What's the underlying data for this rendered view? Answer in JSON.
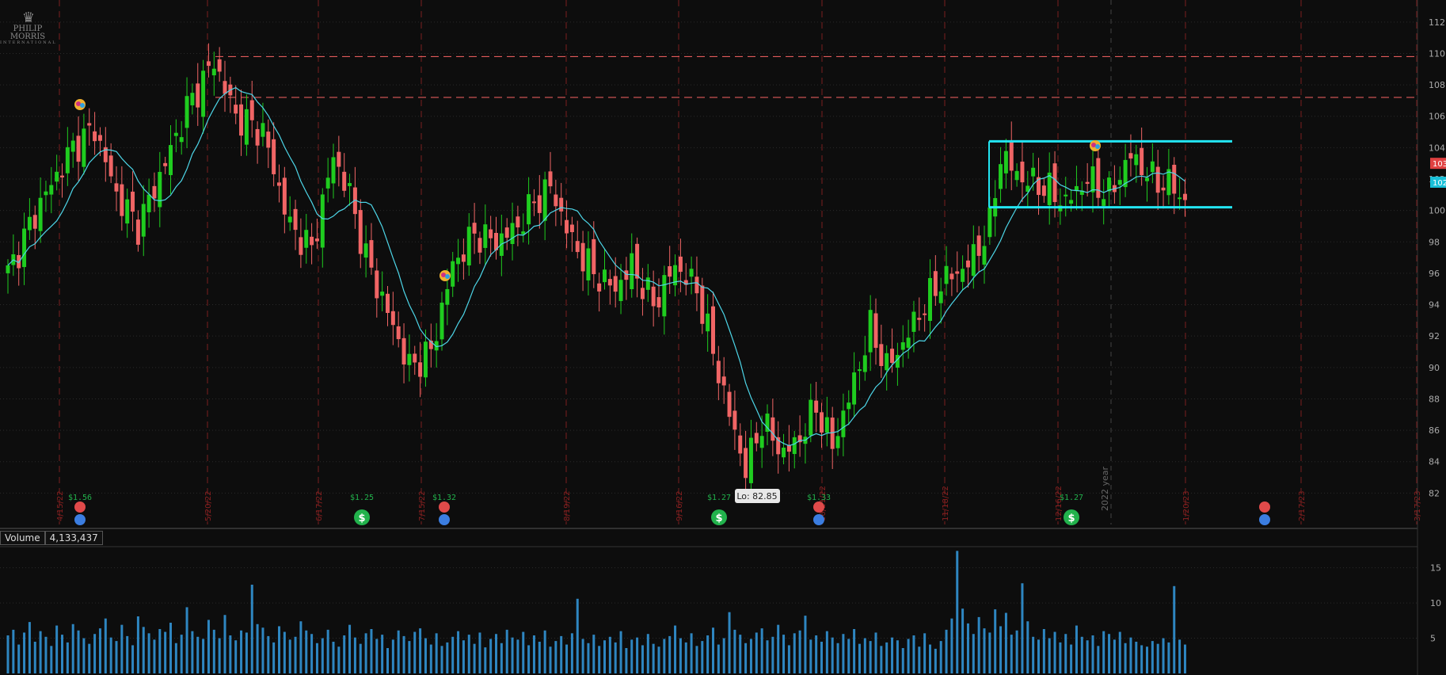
{
  "logo": {
    "name": "PHILIP MORRIS",
    "sub": "INTERNATIONAL"
  },
  "volume_panel": {
    "label": "Volume",
    "value": "4,133,437"
  },
  "price_labels": {
    "last": "103",
    "ma": "102"
  },
  "low_label": "Lo: 82.85",
  "year_label": "2022 year",
  "colors": {
    "up": "#1fcc1f",
    "down": "#f06565",
    "ma": "#4dd6e8",
    "channel": "#23e5f2",
    "resistance": "#e05a5a",
    "grid": "#2a2a2a",
    "volume": "#2e86c1",
    "dividend": "#22b24c",
    "earnings": "#e04a4a",
    "info": "#3b7de0"
  },
  "chart_data": {
    "type": "candlestick",
    "ylim": [
      80,
      113
    ],
    "y_ticks": [
      82,
      84,
      86,
      88,
      90,
      92,
      94,
      96,
      98,
      100,
      102,
      104,
      106,
      108,
      110,
      112
    ],
    "x_date_labels": [
      "4/15/22",
      "5/20/22",
      "6/17/22",
      "7/15/22",
      "8/19/22",
      "9/16/22",
      "10/21/22",
      "11/18/22",
      "12/16/22",
      "1/20/23",
      "2/17/23",
      "3/17/23"
    ],
    "dividends": [
      "$1.56",
      "$1.25",
      "$1.32",
      "$1.27",
      "$1.33",
      "$1.27"
    ],
    "resistance_levels": [
      109.8,
      107.2
    ],
    "channel": {
      "top": 104.4,
      "bottom": 100.2
    },
    "volume_ticks": [
      5,
      10,
      15
    ],
    "volume_unit": "M",
    "last_price": 103,
    "low": 82.85,
    "anchors": [
      [
        0,
        96.0
      ],
      [
        6,
        100.5
      ],
      [
        12,
        104.0
      ],
      [
        16,
        105.2
      ],
      [
        20,
        101.0
      ],
      [
        24,
        99.0
      ],
      [
        29,
        103.0
      ],
      [
        33,
        106.5
      ],
      [
        38,
        109.5
      ],
      [
        42,
        106.0
      ],
      [
        47,
        105.0
      ],
      [
        52,
        99.0
      ],
      [
        56,
        97.5
      ],
      [
        60,
        103.5
      ],
      [
        63,
        101.0
      ],
      [
        66,
        97.0
      ],
      [
        70,
        93.5
      ],
      [
        74,
        90.0
      ],
      [
        78,
        91.0
      ],
      [
        82,
        96.5
      ],
      [
        86,
        98.5
      ],
      [
        90,
        98.0
      ],
      [
        94,
        99.0
      ],
      [
        97,
        100.5
      ],
      [
        100,
        101.5
      ],
      [
        104,
        98.0
      ],
      [
        108,
        96.0
      ],
      [
        112,
        95.0
      ],
      [
        115,
        96.5
      ],
      [
        119,
        94.0
      ],
      [
        123,
        96.5
      ],
      [
        127,
        95.0
      ],
      [
        130,
        91.0
      ],
      [
        133,
        87.0
      ],
      [
        136,
        83.5
      ],
      [
        139,
        86.5
      ],
      [
        143,
        84.5
      ],
      [
        146,
        85.5
      ],
      [
        149,
        87.5
      ],
      [
        152,
        85.0
      ],
      [
        155,
        88.0
      ],
      [
        159,
        92.5
      ],
      [
        162,
        90.0
      ],
      [
        165,
        91.5
      ],
      [
        168,
        93.5
      ],
      [
        172,
        95.5
      ],
      [
        175,
        96.0
      ],
      [
        178,
        97.0
      ],
      [
        181,
        99.0
      ],
      [
        183,
        103.5
      ],
      [
        187,
        102.0
      ],
      [
        191,
        101.5
      ],
      [
        195,
        100.5
      ],
      [
        199,
        102.0
      ],
      [
        203,
        101.0
      ],
      [
        207,
        103.5
      ],
      [
        211,
        102.0
      ],
      [
        215,
        101.5
      ],
      [
        218,
        100.0
      ],
      [
        221,
        101.5
      ],
      [
        223,
        103.0
      ],
      [
        225,
        104.2
      ]
    ],
    "volume_bars": [
      5.4,
      6.2,
      4.1,
      5.8,
      7.3,
      4.5,
      6.0,
      5.2,
      3.9,
      6.8,
      5.5,
      4.4,
      7.0,
      6.1,
      5.0,
      4.2,
      5.6,
      6.4,
      7.8,
      5.1,
      4.6,
      6.9,
      5.3,
      4.0,
      8.1,
      6.6,
      5.7,
      4.8,
      6.3,
      5.9,
      7.2,
      4.3,
      5.5,
      9.4,
      6.0,
      5.2,
      4.9,
      7.6,
      6.2,
      5.0,
      8.3,
      5.4,
      4.7,
      6.1,
      5.8,
      12.6,
      7.0,
      6.5,
      5.3,
      4.4,
      6.7,
      5.9,
      4.8,
      5.2,
      7.4,
      6.1,
      5.6,
      4.3,
      5.0,
      6.2,
      4.5,
      3.8,
      5.4,
      6.9,
      5.1,
      4.2,
      5.7,
      6.3,
      4.9,
      5.5,
      3.6,
      4.8,
      6.1,
      5.3,
      4.6,
      5.9,
      6.4,
      5.0,
      4.1,
      5.7,
      3.9,
      4.4,
      5.2,
      6.0,
      4.7,
      5.5,
      4.2,
      5.8,
      3.7,
      4.9,
      5.6,
      4.3,
      6.2,
      5.1,
      4.8,
      5.9,
      4.0,
      5.4,
      4.5,
      6.1,
      3.8,
      4.6,
      5.3,
      4.1,
      5.7,
      10.6,
      4.9,
      4.3,
      5.5,
      3.9,
      4.7,
      5.2,
      4.4,
      6.0,
      3.6,
      4.8,
      5.1,
      4.0,
      5.6,
      4.2,
      3.8,
      4.9,
      5.3,
      6.8,
      5.0,
      4.4,
      5.7,
      3.9,
      4.6,
      5.4,
      6.5,
      4.1,
      5.0,
      8.7,
      6.2,
      5.5,
      4.3,
      4.9,
      5.8,
      6.4,
      4.7,
      5.2,
      6.9,
      5.5,
      4.0,
      5.7,
      6.1,
      8.2,
      4.8,
      5.4,
      4.5,
      6.0,
      5.1,
      4.3,
      5.6,
      4.9,
      6.3,
      4.2,
      5.0,
      4.6,
      5.8,
      3.9,
      4.4,
      5.1,
      4.7,
      3.6,
      4.9,
      5.4,
      3.8,
      5.7,
      4.1,
      3.5,
      4.6,
      6.2,
      7.8,
      17.4,
      9.2,
      7.1,
      5.6,
      8.0,
      6.4,
      5.8,
      9.1,
      6.7,
      8.6,
      5.5,
      6.1,
      12.8,
      7.4,
      5.2,
      4.8,
      6.3,
      5.0,
      5.9,
      4.4,
      5.6,
      4.1,
      6.8,
      5.2,
      4.7,
      5.4,
      3.9,
      6.0,
      5.6,
      4.8,
      5.9,
      4.3,
      5.1,
      4.5,
      4.0,
      3.8,
      4.6,
      4.2,
      5.0,
      4.4,
      12.4,
      4.8,
      4.1
    ]
  }
}
